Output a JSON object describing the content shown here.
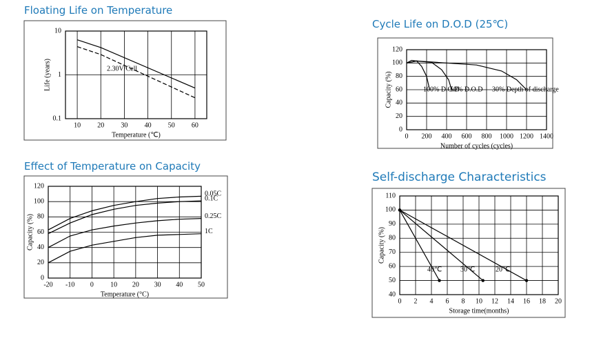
{
  "chart_data": [
    {
      "type": "line",
      "title": "Floating Life on Temperature",
      "xlabel": "Temperature (℃)",
      "ylabel": "Life (years)",
      "xlim": [
        5,
        65
      ],
      "ylim": [
        0.1,
        10
      ],
      "log_y": true,
      "xticks": [
        10,
        20,
        30,
        40,
        50,
        60
      ],
      "yticks": [
        0.1,
        1,
        10
      ],
      "grid": true,
      "annotations": [
        "2.30V/Cell"
      ],
      "series": [
        {
          "color": "#000000",
          "x": [
            10,
            20,
            60
          ],
          "values": [
            6.3,
            4.2,
            0.5
          ]
        },
        {
          "color": "#000000",
          "dashed": true,
          "x": [
            10,
            20,
            60
          ],
          "values": [
            4.4,
            2.9,
            0.3
          ]
        }
      ]
    },
    {
      "type": "line",
      "title": "Cycle Life on D.O.D (25℃)",
      "xlabel": "Number of cycles (cycles)",
      "ylabel": "Capacity (%)",
      "xlim": [
        0,
        1400
      ],
      "ylim": [
        0,
        120
      ],
      "xticks": [
        0,
        200,
        400,
        600,
        800,
        1000,
        1200,
        1400
      ],
      "yticks": [
        0,
        20,
        40,
        60,
        80,
        100,
        120
      ],
      "grid": true,
      "annotations": [
        "100% D.O.D",
        "50% D.O.D",
        "30% Depth of discharge"
      ],
      "series": [
        {
          "color": "#000000",
          "x": [
            0,
            50,
            100,
            150,
            200,
            230
          ],
          "values": [
            100,
            104,
            103,
            95,
            80,
            60
          ]
        },
        {
          "color": "#000000",
          "x": [
            0,
            100,
            250,
            350,
            420,
            450
          ],
          "values": [
            100,
            103,
            101,
            90,
            75,
            60
          ]
        },
        {
          "color": "#000000",
          "x": [
            0,
            100,
            400,
            700,
            950,
            1100,
            1200
          ],
          "values": [
            100,
            103,
            100,
            97,
            88,
            75,
            60
          ]
        }
      ]
    },
    {
      "type": "line",
      "title": "Effect of Temperature on Capacity",
      "xlabel": "Temperature (°C)",
      "ylabel": "Capacity (%)",
      "xlim": [
        -20,
        50
      ],
      "ylim": [
        0,
        120
      ],
      "xticks": [
        -20,
        -10,
        0,
        10,
        20,
        30,
        40,
        50
      ],
      "yticks": [
        0,
        20,
        40,
        60,
        80,
        100,
        120
      ],
      "grid": true,
      "series": [
        {
          "name": "0.05C",
          "color": "#000000",
          "x": [
            -20,
            -10,
            0,
            10,
            20,
            30,
            40,
            50
          ],
          "values": [
            63,
            78,
            88,
            95,
            100,
            104,
            106,
            107
          ]
        },
        {
          "name": "0.1C",
          "color": "#000000",
          "x": [
            -20,
            -10,
            0,
            10,
            20,
            30,
            40,
            50
          ],
          "values": [
            58,
            72,
            83,
            90,
            95,
            98,
            100,
            101
          ]
        },
        {
          "name": "0.25C",
          "color": "#000000",
          "x": [
            -20,
            -10,
            0,
            10,
            20,
            30,
            40,
            50
          ],
          "values": [
            40,
            55,
            63,
            68,
            72,
            75,
            77,
            78
          ]
        },
        {
          "name": "1C",
          "color": "#000000",
          "x": [
            -20,
            -10,
            0,
            10,
            20,
            30,
            40,
            50
          ],
          "values": [
            20,
            35,
            43,
            48,
            53,
            56,
            57,
            58
          ]
        }
      ]
    },
    {
      "type": "line",
      "title": "Self-discharge Characteristics",
      "xlabel": "Storage time(months)",
      "ylabel": "Capacity (%)",
      "xlim": [
        0,
        20
      ],
      "ylim": [
        40,
        110
      ],
      "xticks": [
        0,
        2,
        4,
        6,
        8,
        10,
        12,
        14,
        16,
        18,
        20
      ],
      "yticks": [
        40,
        50,
        60,
        70,
        80,
        90,
        100,
        110
      ],
      "grid": true,
      "markers": true,
      "series": [
        {
          "name": "40℃",
          "color": "#000000",
          "x": [
            0,
            5
          ],
          "values": [
            100,
            50
          ]
        },
        {
          "name": "30℃",
          "color": "#000000",
          "x": [
            0,
            10.5
          ],
          "values": [
            100,
            50
          ]
        },
        {
          "name": "20℃",
          "color": "#000000",
          "x": [
            0,
            16
          ],
          "values": [
            100,
            50
          ]
        }
      ]
    }
  ]
}
